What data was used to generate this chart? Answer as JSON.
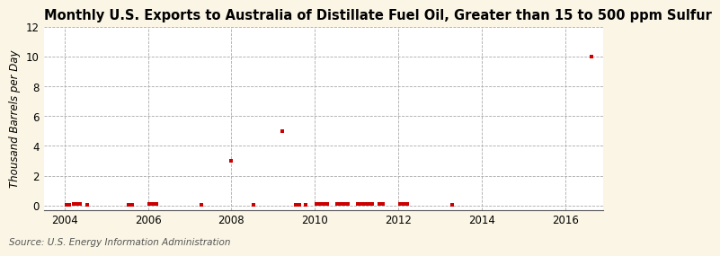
{
  "title": "Monthly U.S. Exports to Australia of Distillate Fuel Oil, Greater than 15 to 500 ppm Sulfur",
  "ylabel": "Thousand Barrels per Day",
  "source": "Source: U.S. Energy Information Administration",
  "xlim": [
    2003.5,
    2016.92
  ],
  "ylim": [
    -0.3,
    12
  ],
  "yticks": [
    0,
    2,
    4,
    6,
    8,
    10,
    12
  ],
  "xticks": [
    2004,
    2006,
    2008,
    2010,
    2012,
    2014,
    2016
  ],
  "figure_bg_color": "#faf5e4",
  "plot_bg_color": "#ffffff",
  "grid_color": "#aaaaaa",
  "marker_color": "#cc0000",
  "data_points": [
    [
      2004.04,
      0.05
    ],
    [
      2004.12,
      0.05
    ],
    [
      2004.21,
      0.1
    ],
    [
      2004.29,
      0.1
    ],
    [
      2004.38,
      0.1
    ],
    [
      2004.54,
      0.05
    ],
    [
      2005.54,
      0.05
    ],
    [
      2005.63,
      0.05
    ],
    [
      2006.04,
      0.1
    ],
    [
      2006.12,
      0.1
    ],
    [
      2006.21,
      0.1
    ],
    [
      2007.29,
      0.05
    ],
    [
      2008.0,
      3.0
    ],
    [
      2008.54,
      0.05
    ],
    [
      2009.21,
      5.0
    ],
    [
      2009.54,
      0.05
    ],
    [
      2009.63,
      0.05
    ],
    [
      2009.79,
      0.05
    ],
    [
      2010.04,
      0.1
    ],
    [
      2010.12,
      0.1
    ],
    [
      2010.21,
      0.1
    ],
    [
      2010.29,
      0.1
    ],
    [
      2010.54,
      0.1
    ],
    [
      2010.63,
      0.1
    ],
    [
      2010.71,
      0.1
    ],
    [
      2010.79,
      0.1
    ],
    [
      2011.04,
      0.1
    ],
    [
      2011.12,
      0.1
    ],
    [
      2011.21,
      0.1
    ],
    [
      2011.29,
      0.1
    ],
    [
      2011.38,
      0.1
    ],
    [
      2011.54,
      0.1
    ],
    [
      2011.63,
      0.1
    ],
    [
      2012.04,
      0.1
    ],
    [
      2012.12,
      0.1
    ],
    [
      2012.21,
      0.1
    ],
    [
      2013.29,
      0.05
    ],
    [
      2016.63,
      10.0
    ]
  ],
  "title_fontsize": 10.5,
  "label_fontsize": 8.5,
  "tick_fontsize": 8.5,
  "source_fontsize": 7.5
}
